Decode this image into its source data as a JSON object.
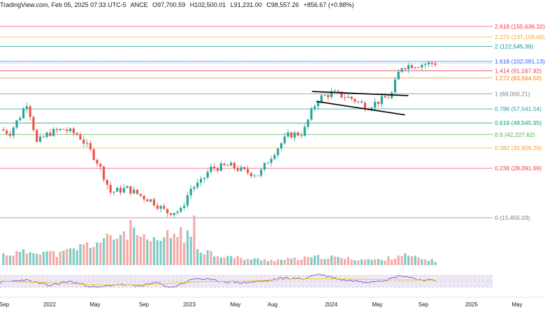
{
  "header": {
    "source": "TradingView.com, Feb 05, 2025 07:33 UTC-5",
    "exchange_fragment": "ANCE",
    "open": "O97,700.59",
    "high": "H102,500.01",
    "low": "L91,231.00",
    "close": "C98,557.26",
    "change": "+856.67 (+0.88%)"
  },
  "colors": {
    "up": "#26a69a",
    "down": "#ef5350",
    "volume_up": "#80cbc4",
    "volume_down": "#f7a9a7",
    "rsi_line": "#7e57c2",
    "rsi_ma": "#f5d000",
    "rsi_band": "#ede7f6"
  },
  "chart_data": {
    "type": "candlestick",
    "scale": "log",
    "x_ticks": [
      "Sep",
      "2022",
      "May",
      "Sep",
      "2023",
      "May",
      "Aug",
      "2024",
      "May",
      "Sep",
      "2025",
      "May"
    ],
    "fib_levels": [
      {
        "ratio": "2.618",
        "value": 155636.32,
        "label": "2.618 (155,636.32)",
        "color": "#f23645"
      },
      {
        "ratio": "2.272",
        "value": 137109.68,
        "label": "2.272 (137,109.68)",
        "color": "#f5a623"
      },
      {
        "ratio": "2",
        "value": 122545.39,
        "label": "2 (122,545.39)",
        "color": "#089981"
      },
      {
        "ratio": "1.618",
        "value": 102091.13,
        "label": "1.618 (102,091.13)",
        "color": "#2962ff"
      },
      {
        "ratio": "1.414",
        "value": 91167.92,
        "label": "1.414 (91,167.92)",
        "color": "#f23645"
      },
      {
        "ratio": "1.272",
        "value": 83564.5,
        "label": "1.272 (83,564.50)",
        "color": "#f57c00"
      },
      {
        "ratio": "1",
        "value": 69000.21,
        "label": "1 (69,000.21)",
        "color": "#787b86"
      },
      {
        "ratio": "0.786",
        "value": 57541.54,
        "label": "0.786 (57,541.54)",
        "color": "#26a69a"
      },
      {
        "ratio": "0.618",
        "value": 48545.95,
        "label": "0.618 (48,545.95)",
        "color": "#089981"
      },
      {
        "ratio": "0.5",
        "value": 42227.62,
        "label": "0.5 (42,227.62)",
        "color": "#4caf50"
      },
      {
        "ratio": "0.382",
        "value": 35909.29,
        "label": "0.382 (35,909.29)",
        "color": "#f5a623"
      },
      {
        "ratio": "0.236",
        "value": 28091.69,
        "label": "0.236 (28,091.69)",
        "color": "#f23645"
      },
      {
        "ratio": "0",
        "value": 15455.03,
        "label": "0 (15,455.03)",
        "color": "#787b86"
      }
    ],
    "price_path": [
      [
        0.0,
        45000
      ],
      [
        0.02,
        43000
      ],
      [
        0.04,
        52000
      ],
      [
        0.055,
        62000
      ],
      [
        0.075,
        38000
      ],
      [
        0.1,
        43000
      ],
      [
        0.13,
        45000
      ],
      [
        0.16,
        42000
      ],
      [
        0.2,
        30000
      ],
      [
        0.225,
        21000
      ],
      [
        0.26,
        22000
      ],
      [
        0.29,
        20000
      ],
      [
        0.31,
        19000
      ],
      [
        0.34,
        16500
      ],
      [
        0.37,
        16800
      ],
      [
        0.39,
        22000
      ],
      [
        0.41,
        23500
      ],
      [
        0.43,
        28000
      ],
      [
        0.47,
        29000
      ],
      [
        0.5,
        27000
      ],
      [
        0.53,
        26000
      ],
      [
        0.56,
        34000
      ],
      [
        0.59,
        42000
      ],
      [
        0.62,
        43000
      ],
      [
        0.65,
        65000
      ],
      [
        0.68,
        70000
      ],
      [
        0.72,
        65000
      ],
      [
        0.75,
        59000
      ],
      [
        0.78,
        64000
      ],
      [
        0.8,
        68000
      ],
      [
        0.82,
        96000
      ],
      [
        0.845,
        98000
      ],
      [
        0.87,
        99000
      ],
      [
        0.89,
        100000
      ]
    ],
    "volume_path": [
      [
        0.0,
        0.25
      ],
      [
        0.05,
        0.3
      ],
      [
        0.08,
        0.35
      ],
      [
        0.12,
        0.25
      ],
      [
        0.17,
        0.45
      ],
      [
        0.22,
        0.6
      ],
      [
        0.27,
        0.85
      ],
      [
        0.3,
        0.5
      ],
      [
        0.33,
        0.6
      ],
      [
        0.37,
        0.8
      ],
      [
        0.4,
        0.45
      ],
      [
        0.44,
        0.25
      ],
      [
        0.5,
        0.15
      ],
      [
        0.56,
        0.12
      ],
      [
        0.61,
        0.15
      ],
      [
        0.66,
        0.2
      ],
      [
        0.72,
        0.15
      ],
      [
        0.78,
        0.12
      ],
      [
        0.82,
        0.25
      ],
      [
        0.86,
        0.15
      ],
      [
        0.89,
        0.1
      ]
    ],
    "volume_spike": {
      "at": 0.395,
      "level": 1.0
    },
    "rsi_path": [
      [
        0.0,
        45
      ],
      [
        0.05,
        55
      ],
      [
        0.1,
        35
      ],
      [
        0.14,
        50
      ],
      [
        0.2,
        28
      ],
      [
        0.24,
        40
      ],
      [
        0.28,
        33
      ],
      [
        0.32,
        45
      ],
      [
        0.35,
        28
      ],
      [
        0.4,
        60
      ],
      [
        0.45,
        50
      ],
      [
        0.5,
        45
      ],
      [
        0.55,
        52
      ],
      [
        0.58,
        62
      ],
      [
        0.62,
        58
      ],
      [
        0.65,
        75
      ],
      [
        0.7,
        55
      ],
      [
        0.75,
        48
      ],
      [
        0.79,
        55
      ],
      [
        0.82,
        70
      ],
      [
        0.86,
        55
      ],
      [
        0.89,
        52
      ]
    ],
    "rsi_ma_path": [
      [
        0.0,
        50
      ],
      [
        0.1,
        45
      ],
      [
        0.2,
        38
      ],
      [
        0.3,
        38
      ],
      [
        0.4,
        48
      ],
      [
        0.5,
        50
      ],
      [
        0.6,
        58
      ],
      [
        0.7,
        58
      ],
      [
        0.8,
        55
      ],
      [
        0.89,
        54
      ]
    ],
    "flag_upper": [
      [
        0.638,
        71000
      ],
      [
        0.835,
        67500
      ]
    ],
    "flag_lower": [
      [
        0.647,
        63000
      ],
      [
        0.828,
        53500
      ]
    ]
  }
}
